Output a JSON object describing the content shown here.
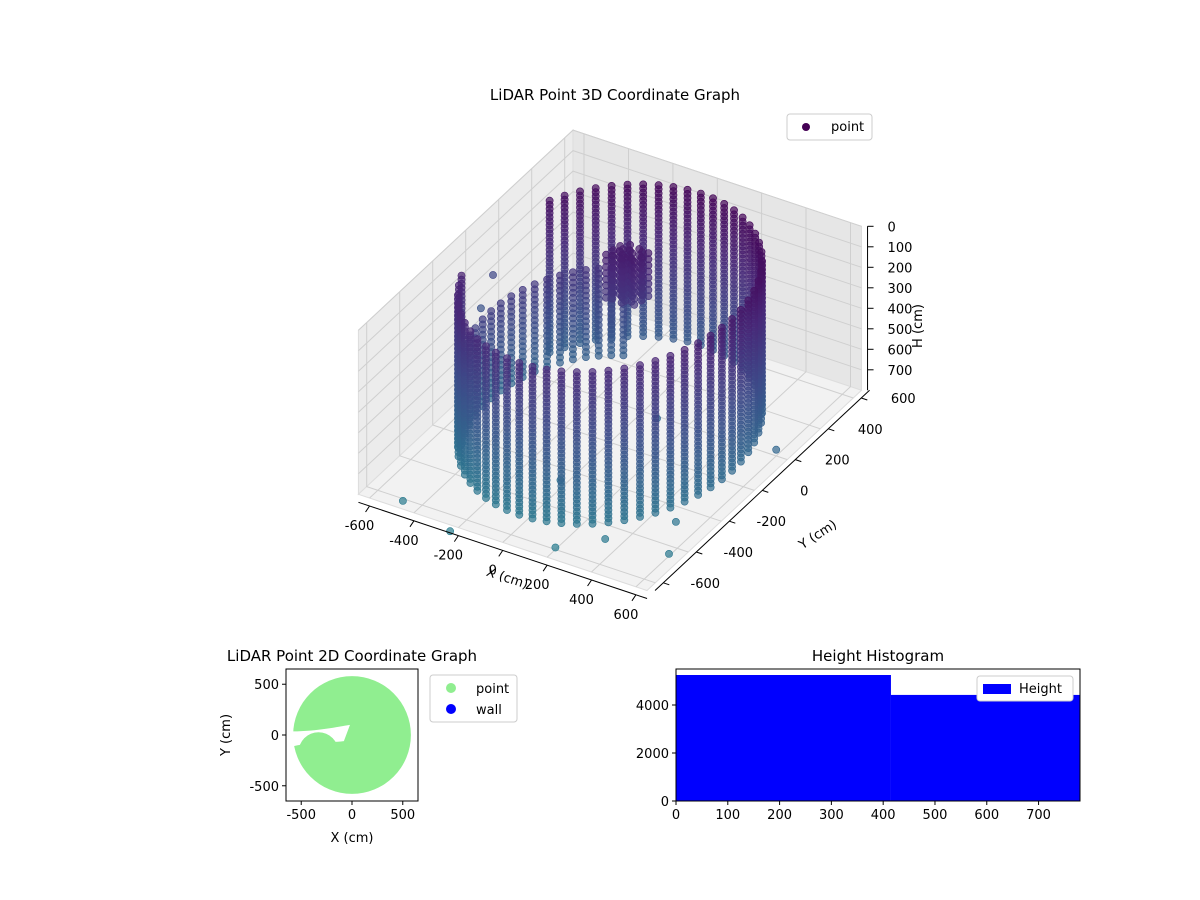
{
  "chart_data": [
    {
      "type": "scatter",
      "projection": "3d",
      "title": "LiDAR Point 3D Coordinate Graph",
      "xlabel": "X (cm)",
      "ylabel": "Y (cm)",
      "zlabel": "H (cm)",
      "xlim": [
        -650,
        650
      ],
      "ylim": [
        -650,
        650
      ],
      "zlim": [
        750,
        0
      ],
      "z_axis_inverted": true,
      "xticks": [
        "-600",
        "-400",
        "-200",
        "0",
        "200",
        "400",
        "600"
      ],
      "yticks": [
        "-600",
        "-400",
        "-200",
        "0",
        "200",
        "400",
        "600"
      ],
      "zticks": [
        "0",
        "100",
        "200",
        "300",
        "400",
        "500",
        "600",
        "700"
      ],
      "colormap": "viridis",
      "grid": true,
      "legend": {
        "position": "top-right",
        "entries": [
          {
            "label": "point",
            "color": "#440154"
          }
        ]
      },
      "shape": {
        "kind": "cylindrical wall scan",
        "wall_radius": 550,
        "height_range": [
          0,
          740
        ],
        "open_sector_degrees": [
          150,
          200
        ],
        "inner_spiral_wall_radius": 420,
        "obstacle_center": [
          -100,
          250
        ]
      },
      "outliers": [
        {
          "x": -450,
          "y": -650,
          "z": 760
        },
        {
          "x": -200,
          "y": -700,
          "z": 780
        },
        {
          "x": 0,
          "y": -300,
          "z": 760
        },
        {
          "x": 200,
          "y": -600,
          "z": 790
        },
        {
          "x": 350,
          "y": -500,
          "z": 770
        },
        {
          "x": 520,
          "y": -300,
          "z": 775
        },
        {
          "x": 600,
          "y": -450,
          "z": 790
        },
        {
          "x": 600,
          "y": 200,
          "z": 770
        },
        {
          "x": -750,
          "y": 300,
          "z": 480
        },
        {
          "x": -730,
          "y": 200,
          "z": 560
        },
        {
          "x": 100,
          "y": 150,
          "z": 760
        }
      ]
    },
    {
      "type": "scatter",
      "title": "LiDAR Point 2D Coordinate Graph",
      "xlabel": "X (cm)",
      "ylabel": "Y (cm)",
      "xlim": [
        -650,
        650
      ],
      "ylim": [
        -650,
        650
      ],
      "xticks": [
        "-500",
        "0",
        "500"
      ],
      "yticks": [
        "-500",
        "0",
        "500"
      ],
      "legend": {
        "position": "outside-right",
        "entries": [
          {
            "label": "point",
            "color": "#90ee90"
          },
          {
            "label": "wall",
            "color": "#0000ff"
          }
        ]
      },
      "wall_radius": 580
    },
    {
      "type": "bar",
      "title": "Height Histogram",
      "xlim": [
        0,
        780
      ],
      "ylim": [
        0,
        5500
      ],
      "xticks": [
        "0",
        "100",
        "200",
        "300",
        "400",
        "500",
        "600",
        "700"
      ],
      "yticks": [
        "0",
        "2000",
        "4000"
      ],
      "bins": [
        {
          "x0": 0,
          "x1": 415,
          "value": 5250
        },
        {
          "x0": 415,
          "x1": 780,
          "value": 4420
        }
      ],
      "color": "#0000ff",
      "legend": {
        "position": "top-right",
        "entries": [
          {
            "label": "Height",
            "color": "#0000ff"
          }
        ]
      }
    }
  ]
}
